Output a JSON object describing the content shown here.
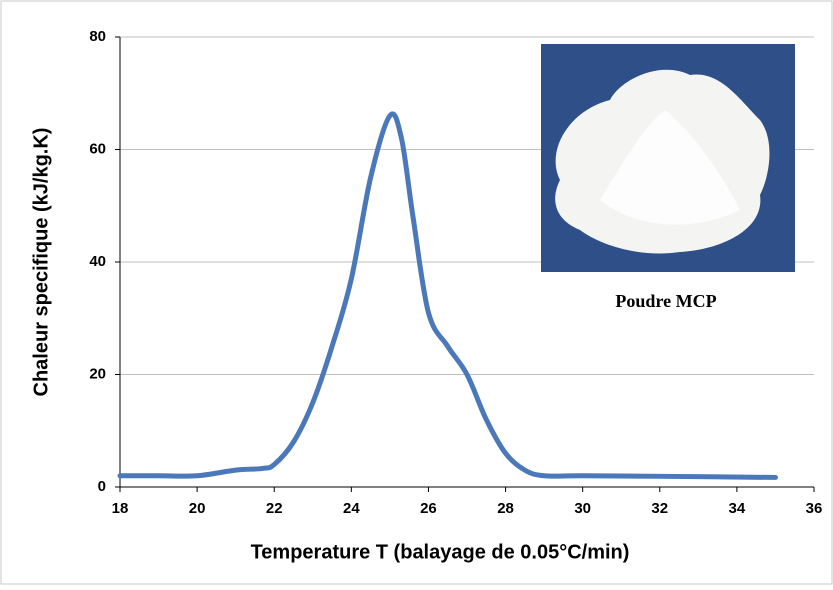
{
  "chart_data": {
    "type": "line",
    "x_label": "Temperature T (balayage de 0.05°C/min)",
    "y_label": "Chaleur specifique (kJ/kg.K)",
    "annotation": "Poudre MCP",
    "series": [
      {
        "color": "#4a78b8",
        "x": [
          18,
          19,
          20,
          21,
          21.7,
          22,
          22.5,
          23,
          23.5,
          24,
          24.5,
          25,
          25.3,
          25.6,
          26,
          26.5,
          27,
          27.5,
          28,
          28.5,
          29,
          30,
          32,
          35
        ],
        "values": [
          2,
          2,
          2,
          3,
          3.3,
          4,
          8,
          15,
          25,
          37,
          55,
          66,
          62,
          48,
          31,
          25,
          20,
          12,
          6,
          3,
          2,
          2,
          1.9,
          1.7
        ]
      }
    ],
    "xlim": [
      18,
      36
    ],
    "xticks": [
      18,
      20,
      22,
      24,
      26,
      28,
      30,
      32,
      34,
      36
    ],
    "ylim": [
      0,
      80
    ],
    "yticks": [
      0,
      20,
      40,
      60,
      80
    ],
    "grid": true
  }
}
